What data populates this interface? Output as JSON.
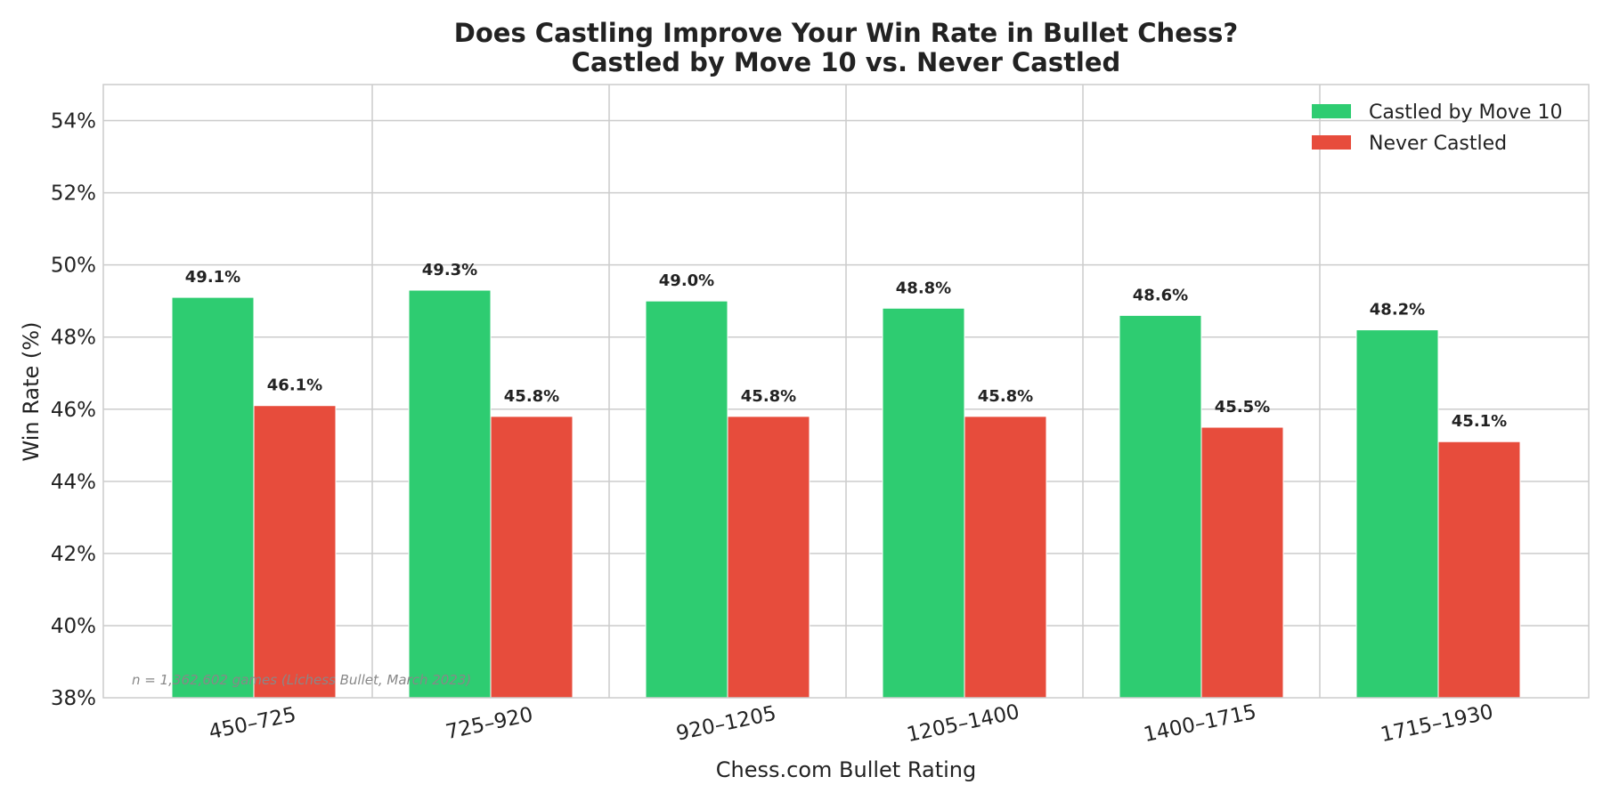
{
  "chart_data": {
    "type": "bar",
    "title": "Does Castling Improve Your Win Rate in Bullet Chess?",
    "subtitle": "Castled by Move 10 vs. Never Castled",
    "xlabel": "Chess.com Bullet Rating",
    "ylabel": "Win Rate (%)",
    "categories": [
      "450–725",
      "725–920",
      "920–1205",
      "1205–1400",
      "1400–1715",
      "1715–1930"
    ],
    "series": [
      {
        "name": "Castled by Move 10",
        "color": "#2ecc71",
        "values": [
          49.1,
          49.3,
          49.0,
          48.8,
          48.6,
          48.2
        ]
      },
      {
        "name": "Never Castled",
        "color": "#e74c3c",
        "values": [
          46.1,
          45.8,
          45.8,
          45.8,
          45.5,
          45.1
        ]
      }
    ],
    "value_labels": [
      [
        "49.1%",
        "49.3%",
        "49.0%",
        "48.8%",
        "48.6%",
        "48.2%"
      ],
      [
        "46.1%",
        "45.8%",
        "45.8%",
        "45.8%",
        "45.5%",
        "45.1%"
      ]
    ],
    "ylim": [
      38,
      55
    ],
    "yticks": [
      38,
      40,
      42,
      44,
      46,
      48,
      50,
      52,
      54
    ],
    "ytick_labels": [
      "38%",
      "40%",
      "42%",
      "44%",
      "46%",
      "48%",
      "50%",
      "52%",
      "54%"
    ],
    "legend_position": "top-right",
    "grid": true,
    "annotation": "n = 1,362,602 games (Lichess Bullet, March 2023)"
  }
}
